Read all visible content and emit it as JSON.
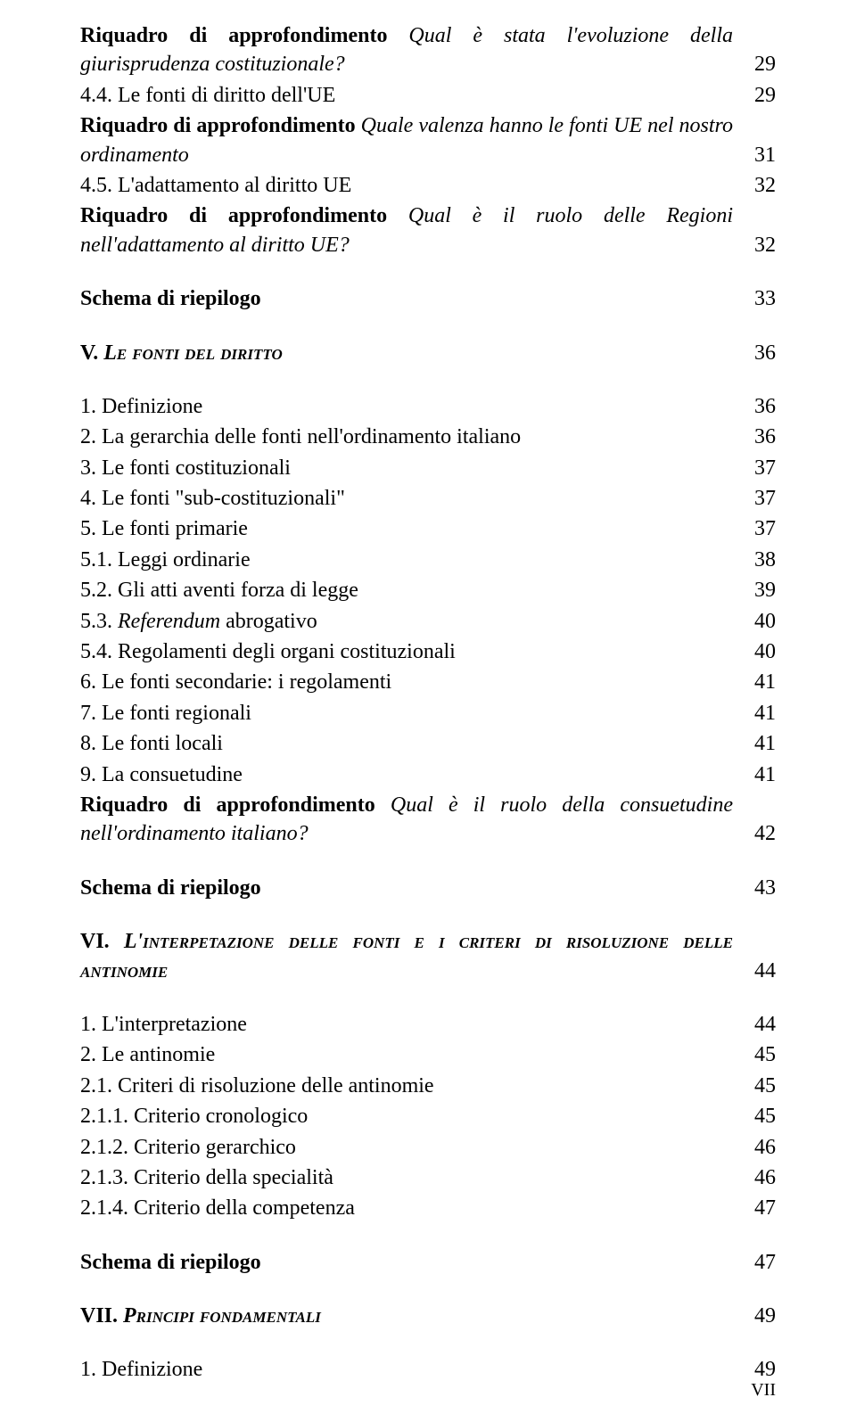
{
  "page_number": "VII",
  "entries": [
    {
      "label_parts": [
        {
          "text": "Riquadro di approfondimento ",
          "bold": true
        },
        {
          "text": "Qual è stata l'evoluzione della giurisprudenza costituzionale?",
          "italic": true
        }
      ],
      "page": "29"
    },
    {
      "label_parts": [
        {
          "text": "4.4. Le fonti di diritto dell'UE"
        }
      ],
      "page": "29"
    },
    {
      "label_parts": [
        {
          "text": "Riquadro di approfondimento ",
          "bold": true
        },
        {
          "text": "Quale valenza hanno le fonti UE nel nostro ordinamento",
          "italic": true
        }
      ],
      "page": "31"
    },
    {
      "label_parts": [
        {
          "text": "4.5. L'adattamento al diritto UE"
        }
      ],
      "page": "32"
    },
    {
      "label_parts": [
        {
          "text": "Riquadro di approfondimento ",
          "bold": true
        },
        {
          "text": "Qual è il ruolo delle Regioni nell'adattamento al diritto UE?",
          "italic": true
        }
      ],
      "page": "32"
    },
    {
      "gap": true
    },
    {
      "label_parts": [
        {
          "text": "Schema di riepilogo",
          "bold": true
        }
      ],
      "page": "33"
    },
    {
      "gap": true
    },
    {
      "label_parts": [
        {
          "text": "V. ",
          "bold": true
        },
        {
          "text": "Le fonti del diritto",
          "bold": true,
          "italic": true,
          "smallcaps": true
        }
      ],
      "page": "36"
    },
    {
      "gap": true
    },
    {
      "label_parts": [
        {
          "text": "1. Definizione"
        }
      ],
      "page": "36"
    },
    {
      "label_parts": [
        {
          "text": "2. La gerarchia delle fonti nell'ordinamento italiano"
        }
      ],
      "page": "36"
    },
    {
      "label_parts": [
        {
          "text": "3. Le fonti costituzionali"
        }
      ],
      "page": "37"
    },
    {
      "label_parts": [
        {
          "text": "4. Le fonti \"sub-costituzionali\""
        }
      ],
      "page": "37"
    },
    {
      "label_parts": [
        {
          "text": "5. Le fonti primarie"
        }
      ],
      "page": "37"
    },
    {
      "label_parts": [
        {
          "text": "5.1. Leggi ordinarie"
        }
      ],
      "page": "38"
    },
    {
      "label_parts": [
        {
          "text": "5.2. Gli atti aventi forza di legge"
        }
      ],
      "page": "39"
    },
    {
      "label_parts": [
        {
          "text": "5.3. "
        },
        {
          "text": "Referendum",
          "italic": true
        },
        {
          "text": " abrogativo"
        }
      ],
      "page": "40"
    },
    {
      "label_parts": [
        {
          "text": "5.4. Regolamenti degli organi costituzionali"
        }
      ],
      "page": "40"
    },
    {
      "label_parts": [
        {
          "text": "6. Le fonti secondarie: i regolamenti"
        }
      ],
      "page": "41"
    },
    {
      "label_parts": [
        {
          "text": "7. Le fonti regionali"
        }
      ],
      "page": "41"
    },
    {
      "label_parts": [
        {
          "text": "8. Le fonti locali"
        }
      ],
      "page": "41"
    },
    {
      "label_parts": [
        {
          "text": "9. La consuetudine"
        }
      ],
      "page": "41"
    },
    {
      "label_parts": [
        {
          "text": "Riquadro di approfondimento ",
          "bold": true
        },
        {
          "text": "Qual è il ruolo della consuetudine nell'ordinamento italiano?",
          "italic": true
        }
      ],
      "page": "42"
    },
    {
      "gap": true
    },
    {
      "label_parts": [
        {
          "text": "Schema di riepilogo",
          "bold": true
        }
      ],
      "page": "43"
    },
    {
      "gap": true
    },
    {
      "label_parts": [
        {
          "text": "VI. ",
          "bold": true
        },
        {
          "text": "L'interpetazione delle fonti e i criteri di risoluzione delle antinomie",
          "bold": true,
          "italic": true,
          "smallcaps": true
        }
      ],
      "page": "44"
    },
    {
      "gap": true
    },
    {
      "label_parts": [
        {
          "text": "1. L'interpretazione"
        }
      ],
      "page": "44"
    },
    {
      "label_parts": [
        {
          "text": "2. Le antinomie"
        }
      ],
      "page": "45"
    },
    {
      "label_parts": [
        {
          "text": "2.1. Criteri di risoluzione delle antinomie"
        }
      ],
      "page": "45"
    },
    {
      "label_parts": [
        {
          "text": "2.1.1. Criterio cronologico"
        }
      ],
      "page": "45"
    },
    {
      "label_parts": [
        {
          "text": "2.1.2. Criterio gerarchico"
        }
      ],
      "page": "46"
    },
    {
      "label_parts": [
        {
          "text": "2.1.3. Criterio della specialità"
        }
      ],
      "page": "46"
    },
    {
      "label_parts": [
        {
          "text": "2.1.4. Criterio della competenza"
        }
      ],
      "page": "47"
    },
    {
      "gap": true
    },
    {
      "label_parts": [
        {
          "text": "Schema di riepilogo",
          "bold": true
        }
      ],
      "page": "47"
    },
    {
      "gap": true
    },
    {
      "label_parts": [
        {
          "text": "VII. ",
          "bold": true
        },
        {
          "text": "Principi fondamentali",
          "bold": true,
          "italic": true,
          "smallcaps": true
        }
      ],
      "page": "49"
    },
    {
      "gap": true
    },
    {
      "label_parts": [
        {
          "text": "1. Definizione"
        }
      ],
      "page": "49"
    }
  ]
}
